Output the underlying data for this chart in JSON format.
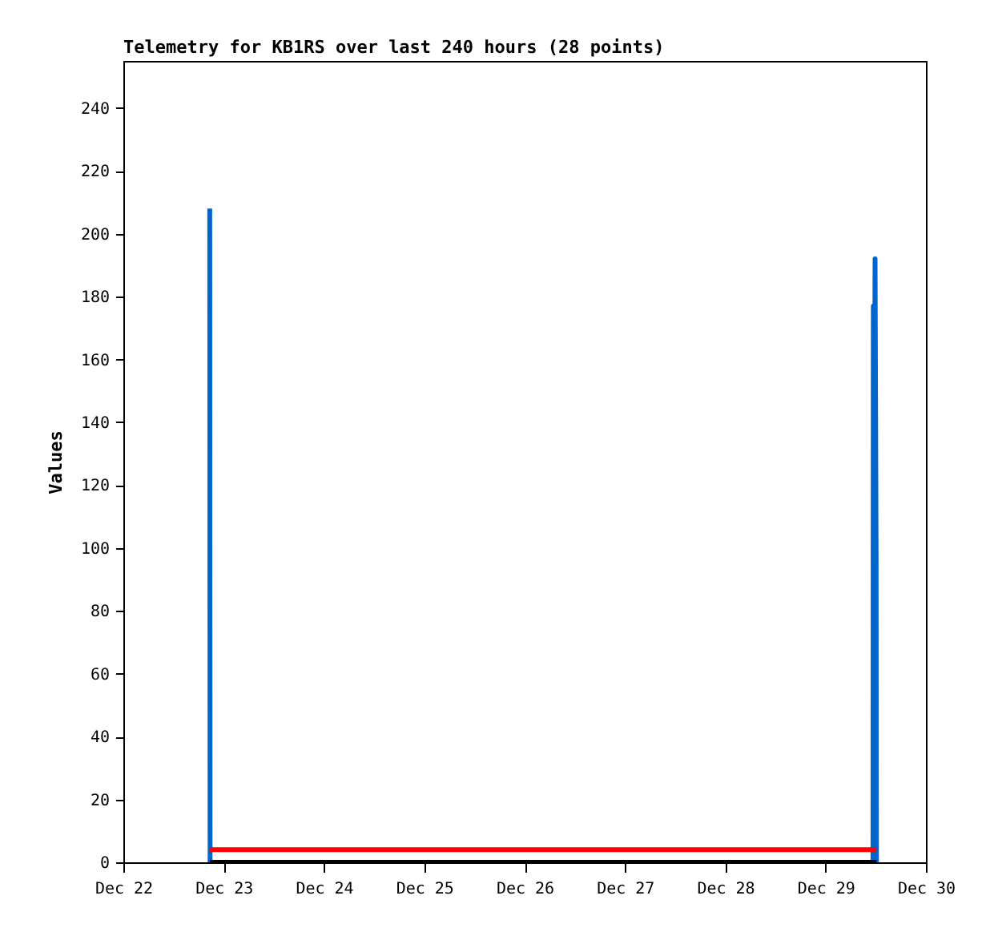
{
  "chart_data": {
    "type": "line",
    "title": "Telemetry for KB1RS over last 240 hours (28 points)",
    "ylabel": "Values",
    "series": [
      {
        "color": "#0066cc",
        "x": [
          "--12-22T20:40",
          "--12-22T20:45",
          "--12-29T11:20",
          "--12-29T11:25",
          "--12-29T11:35",
          "--12-29T11:50",
          "--12-29T12:05",
          "--12-29T12:10"
        ],
        "values": [
          208,
          0,
          0,
          177,
          97,
          192,
          97,
          0
        ]
      },
      {
        "color": "#ff0000",
        "x": [
          "--12-22T20:45",
          "--12-29T12:10"
        ],
        "values": [
          4,
          4
        ]
      },
      {
        "color": "#000000",
        "x": [
          "--12-22T20:45",
          "--12-29T12:10"
        ],
        "values": [
          0,
          0
        ]
      }
    ],
    "xlim": [
      "--12-22",
      "--12-30"
    ],
    "xticks": [
      {
        "value": "--12-22",
        "label": "Dec 22"
      },
      {
        "value": "--12-23",
        "label": "Dec 23"
      },
      {
        "value": "--12-24",
        "label": "Dec 24"
      },
      {
        "value": "--12-25",
        "label": "Dec 25"
      },
      {
        "value": "--12-26",
        "label": "Dec 26"
      },
      {
        "value": "--12-27",
        "label": "Dec 27"
      },
      {
        "value": "--12-28",
        "label": "Dec 28"
      },
      {
        "value": "--12-29",
        "label": "Dec 29"
      },
      {
        "value": "--12-30",
        "label": "Dec 30"
      }
    ],
    "ylim": [
      0,
      255
    ],
    "yticks": [
      0,
      20,
      40,
      60,
      80,
      100,
      120,
      140,
      160,
      180,
      200,
      220,
      240
    ],
    "grid": false,
    "legend": false,
    "marker": "none"
  }
}
